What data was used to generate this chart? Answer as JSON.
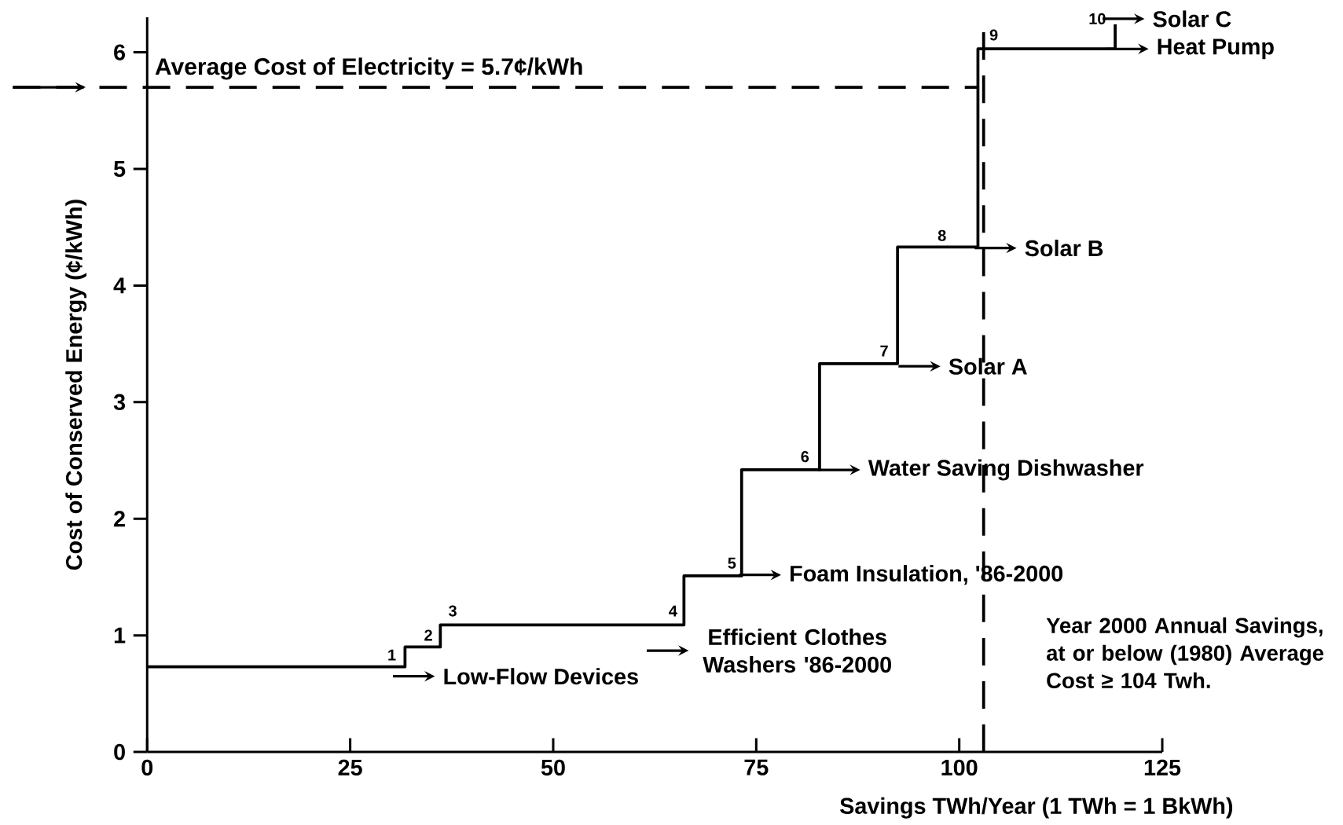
{
  "chart_data": {
    "type": "step",
    "xlabel": "Savings TWh/Year (1 TWh = 1 BkWh)",
    "ylabel": "Cost of Conserved Energy (¢/kWh)",
    "x": [
      0,
      31.75,
      36.1,
      66.1,
      73.2,
      82.8,
      92.4,
      102.3,
      119.2
    ],
    "series": [
      {
        "color": "#000000",
        "values": [
          0.73,
          0.9,
          1.09,
          1.51,
          2.42,
          3.33,
          4.33,
          6.03,
          6.24
        ]
      }
    ],
    "xlim": [
      0,
      125
    ],
    "xticks": [
      0,
      25,
      50,
      75,
      100,
      125
    ],
    "ylim": [
      0,
      6.3
    ],
    "yticks": [
      0,
      1,
      2,
      3,
      4,
      5,
      6
    ],
    "grid": false,
    "marker": "none",
    "line_style": "solid",
    "ref_lines": [
      {
        "axis": "y",
        "value": 5.7,
        "label": "Average Cost of Electricity = 5.7¢/kWh",
        "line_style": "dashed"
      },
      {
        "axis": "x",
        "value": 103,
        "line_style": "dashed"
      }
    ],
    "annotations": [
      "1",
      "2",
      "3",
      "4",
      "5",
      "6",
      "7",
      "8",
      "9",
      "10",
      "Low-Flow Devices",
      "Efficient Clothes Washers '86-2000",
      "Foam Insulation, '86-2000",
      "Water Saving Dishwasher",
      "Solar A",
      "Solar B",
      "Heat Pump",
      "Solar C",
      "Year 2000 Annual Savings, at or below (1980) Average Cost ≥ 104 Twh."
    ]
  }
}
